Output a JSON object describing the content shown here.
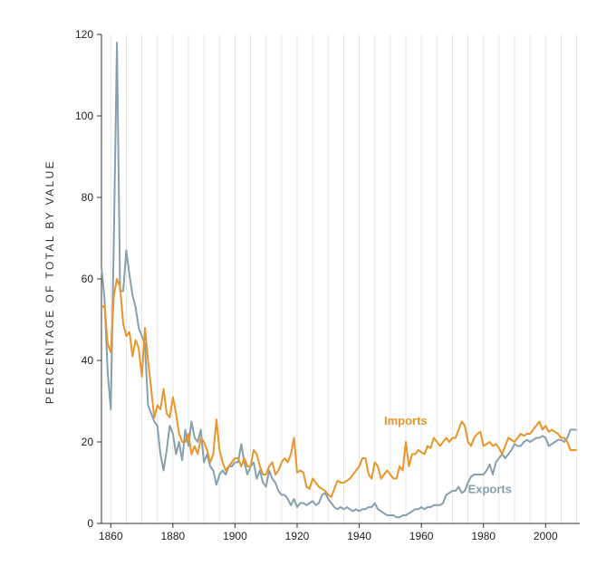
{
  "chart_data": {
    "type": "line",
    "title": "",
    "xlabel": "",
    "ylabel": "PERCENTAGE OF TOTAL BY VALUE",
    "xlim": [
      1857,
      2011
    ],
    "ylim": [
      0,
      120
    ],
    "x_ticks": [
      1860,
      1880,
      1900,
      1920,
      1940,
      1960,
      1980,
      2000
    ],
    "x_tick_labels": [
      "1860",
      "1880",
      "1900",
      "1920",
      "1940",
      "1960",
      "1980",
      "2000"
    ],
    "y_ticks": [
      0,
      20,
      40,
      60,
      80,
      100,
      120
    ],
    "y_tick_labels": [
      "0",
      "20",
      "40",
      "60",
      "80",
      "100",
      "120"
    ],
    "grid": "vertical-every-5-years",
    "legend": "inline-labels",
    "series": [
      {
        "name": "Imports",
        "color": "#e8952a",
        "label_at": [
          1948,
          24.2
        ],
        "points": [
          [
            1857,
            53
          ],
          [
            1858,
            53.5
          ],
          [
            1859,
            44
          ],
          [
            1860,
            42
          ],
          [
            1861,
            56
          ],
          [
            1862,
            60
          ],
          [
            1863,
            58
          ],
          [
            1864,
            49
          ],
          [
            1865,
            46
          ],
          [
            1866,
            47
          ],
          [
            1867,
            41
          ],
          [
            1868,
            45
          ],
          [
            1869,
            43
          ],
          [
            1870,
            36
          ],
          [
            1871,
            48
          ],
          [
            1872,
            40
          ],
          [
            1873,
            33
          ],
          [
            1874,
            26
          ],
          [
            1875,
            29
          ],
          [
            1876,
            28
          ],
          [
            1877,
            33
          ],
          [
            1878,
            27
          ],
          [
            1879,
            26
          ],
          [
            1880,
            31
          ],
          [
            1881,
            27
          ],
          [
            1882,
            22
          ],
          [
            1883,
            20
          ],
          [
            1884,
            20
          ],
          [
            1885,
            22
          ],
          [
            1886,
            17
          ],
          [
            1887,
            19
          ],
          [
            1888,
            17
          ],
          [
            1889,
            21
          ],
          [
            1890,
            20
          ],
          [
            1891,
            18
          ],
          [
            1892,
            15
          ],
          [
            1893,
            17
          ],
          [
            1894,
            25.5
          ],
          [
            1895,
            18
          ],
          [
            1896,
            15
          ],
          [
            1897,
            13
          ],
          [
            1898,
            14
          ],
          [
            1899,
            15
          ],
          [
            1900,
            16
          ],
          [
            1901,
            16
          ],
          [
            1902,
            14
          ],
          [
            1903,
            16
          ],
          [
            1904,
            14
          ],
          [
            1905,
            14
          ],
          [
            1906,
            18
          ],
          [
            1907,
            17
          ],
          [
            1908,
            14
          ],
          [
            1909,
            12
          ],
          [
            1910,
            12
          ],
          [
            1911,
            14
          ],
          [
            1912,
            15
          ],
          [
            1913,
            12
          ],
          [
            1914,
            13
          ],
          [
            1915,
            15
          ],
          [
            1916,
            16
          ],
          [
            1917,
            15
          ],
          [
            1918,
            17
          ],
          [
            1919,
            21
          ],
          [
            1920,
            12.5
          ],
          [
            1921,
            13
          ],
          [
            1922,
            12.5
          ],
          [
            1923,
            9
          ],
          [
            1924,
            8.5
          ],
          [
            1925,
            11
          ],
          [
            1926,
            10
          ],
          [
            1927,
            9
          ],
          [
            1928,
            8.5
          ],
          [
            1929,
            8
          ],
          [
            1930,
            7
          ],
          [
            1931,
            6.5
          ],
          [
            1932,
            8.5
          ],
          [
            1933,
            10.5
          ],
          [
            1934,
            10
          ],
          [
            1935,
            10
          ],
          [
            1936,
            10.5
          ],
          [
            1937,
            11
          ],
          [
            1938,
            12
          ],
          [
            1939,
            13
          ],
          [
            1940,
            14
          ],
          [
            1941,
            16
          ],
          [
            1942,
            16
          ],
          [
            1943,
            12
          ],
          [
            1944,
            11
          ],
          [
            1945,
            15
          ],
          [
            1946,
            14
          ],
          [
            1947,
            11
          ],
          [
            1948,
            12
          ],
          [
            1949,
            13
          ],
          [
            1950,
            12
          ],
          [
            1951,
            11
          ],
          [
            1952,
            11
          ],
          [
            1953,
            14
          ],
          [
            1954,
            13
          ],
          [
            1955,
            20
          ],
          [
            1956,
            14
          ],
          [
            1957,
            17
          ],
          [
            1958,
            17
          ],
          [
            1959,
            18
          ],
          [
            1960,
            17.5
          ],
          [
            1961,
            17
          ],
          [
            1962,
            19
          ],
          [
            1963,
            18.5
          ],
          [
            1964,
            21
          ],
          [
            1965,
            20
          ],
          [
            1966,
            19
          ],
          [
            1967,
            20
          ],
          [
            1968,
            21
          ],
          [
            1969,
            20
          ],
          [
            1970,
            21
          ],
          [
            1971,
            21
          ],
          [
            1972,
            23
          ],
          [
            1973,
            25
          ],
          [
            1974,
            24
          ],
          [
            1975,
            20
          ],
          [
            1976,
            19
          ],
          [
            1977,
            21
          ],
          [
            1978,
            22
          ],
          [
            1979,
            22.5
          ],
          [
            1980,
            19
          ],
          [
            1981,
            19.5
          ],
          [
            1982,
            20
          ],
          [
            1983,
            19
          ],
          [
            1984,
            19.5
          ],
          [
            1985,
            18.5
          ],
          [
            1986,
            17
          ],
          [
            1987,
            19
          ],
          [
            1988,
            21
          ],
          [
            1989,
            20.5
          ],
          [
            1990,
            20
          ],
          [
            1991,
            21
          ],
          [
            1992,
            22
          ],
          [
            1993,
            21.5
          ],
          [
            1994,
            22
          ],
          [
            1995,
            22
          ],
          [
            1996,
            23
          ],
          [
            1997,
            24
          ],
          [
            1998,
            25
          ],
          [
            1999,
            23
          ],
          [
            2000,
            24
          ],
          [
            2001,
            22.5
          ],
          [
            2002,
            23
          ],
          [
            2003,
            22.5
          ],
          [
            2004,
            22
          ],
          [
            2005,
            21
          ],
          [
            2006,
            21
          ],
          [
            2007,
            20
          ],
          [
            2008,
            18
          ],
          [
            2009,
            18
          ],
          [
            2010,
            18
          ]
        ]
      },
      {
        "name": "Exports",
        "color": "#87a0b0",
        "label_at": [
          1975,
          7.5
        ],
        "points": [
          [
            1857,
            63
          ],
          [
            1858,
            55
          ],
          [
            1859,
            37
          ],
          [
            1860,
            28
          ],
          [
            1861,
            70
          ],
          [
            1862,
            118
          ],
          [
            1863,
            57
          ],
          [
            1864,
            57
          ],
          [
            1865,
            67
          ],
          [
            1866,
            61
          ],
          [
            1867,
            56
          ],
          [
            1868,
            53
          ],
          [
            1869,
            48
          ],
          [
            1870,
            46
          ],
          [
            1871,
            44
          ],
          [
            1872,
            29
          ],
          [
            1873,
            27
          ],
          [
            1874,
            25
          ],
          [
            1875,
            24
          ],
          [
            1876,
            17
          ],
          [
            1877,
            13
          ],
          [
            1878,
            18
          ],
          [
            1879,
            24
          ],
          [
            1880,
            22
          ],
          [
            1881,
            17
          ],
          [
            1882,
            20
          ],
          [
            1883,
            15.5
          ],
          [
            1884,
            23
          ],
          [
            1885,
            19
          ],
          [
            1886,
            25
          ],
          [
            1887,
            21
          ],
          [
            1888,
            20
          ],
          [
            1889,
            23
          ],
          [
            1890,
            15
          ],
          [
            1891,
            17
          ],
          [
            1892,
            14
          ],
          [
            1893,
            13
          ],
          [
            1894,
            9.5
          ],
          [
            1895,
            12
          ],
          [
            1896,
            13
          ],
          [
            1897,
            12
          ],
          [
            1898,
            14
          ],
          [
            1899,
            14
          ],
          [
            1900,
            15
          ],
          [
            1901,
            15
          ],
          [
            1902,
            19.5
          ],
          [
            1903,
            15
          ],
          [
            1904,
            12
          ],
          [
            1905,
            14
          ],
          [
            1906,
            15
          ],
          [
            1907,
            11
          ],
          [
            1908,
            13
          ],
          [
            1909,
            10
          ],
          [
            1910,
            9
          ],
          [
            1911,
            13
          ],
          [
            1912,
            11
          ],
          [
            1913,
            10
          ],
          [
            1914,
            8
          ],
          [
            1915,
            7
          ],
          [
            1916,
            7
          ],
          [
            1917,
            6
          ],
          [
            1918,
            4.5
          ],
          [
            1919,
            6
          ],
          [
            1920,
            4
          ],
          [
            1921,
            5
          ],
          [
            1922,
            5
          ],
          [
            1923,
            4.5
          ],
          [
            1924,
            5
          ],
          [
            1925,
            5.5
          ],
          [
            1926,
            4.5
          ],
          [
            1927,
            5
          ],
          [
            1928,
            7
          ],
          [
            1929,
            7.5
          ],
          [
            1930,
            6
          ],
          [
            1931,
            5
          ],
          [
            1932,
            4
          ],
          [
            1933,
            3.5
          ],
          [
            1934,
            4
          ],
          [
            1935,
            3.5
          ],
          [
            1936,
            4
          ],
          [
            1937,
            3.5
          ],
          [
            1938,
            3
          ],
          [
            1939,
            3.5
          ],
          [
            1940,
            3
          ],
          [
            1941,
            3.5
          ],
          [
            1942,
            3.5
          ],
          [
            1943,
            4
          ],
          [
            1944,
            4
          ],
          [
            1945,
            5
          ],
          [
            1946,
            3.5
          ],
          [
            1947,
            3
          ],
          [
            1948,
            2.5
          ],
          [
            1949,
            2
          ],
          [
            1950,
            2
          ],
          [
            1951,
            2
          ],
          [
            1952,
            1.5
          ],
          [
            1953,
            1.5
          ],
          [
            1954,
            2
          ],
          [
            1955,
            2
          ],
          [
            1956,
            2.5
          ],
          [
            1957,
            3
          ],
          [
            1958,
            3.5
          ],
          [
            1959,
            3.5
          ],
          [
            1960,
            4
          ],
          [
            1961,
            3.5
          ],
          [
            1962,
            4
          ],
          [
            1963,
            4
          ],
          [
            1964,
            4.5
          ],
          [
            1965,
            4.5
          ],
          [
            1966,
            4.5
          ],
          [
            1967,
            5
          ],
          [
            1968,
            7
          ],
          [
            1969,
            7.5
          ],
          [
            1970,
            8
          ],
          [
            1971,
            8
          ],
          [
            1972,
            9
          ],
          [
            1973,
            7.5
          ],
          [
            1974,
            8
          ],
          [
            1975,
            10
          ],
          [
            1976,
            11.5
          ],
          [
            1977,
            12
          ],
          [
            1978,
            12
          ],
          [
            1979,
            12
          ],
          [
            1980,
            12
          ],
          [
            1981,
            13
          ],
          [
            1982,
            14.5
          ],
          [
            1983,
            12
          ],
          [
            1984,
            15
          ],
          [
            1985,
            16
          ],
          [
            1986,
            17
          ],
          [
            1987,
            16
          ],
          [
            1988,
            17
          ],
          [
            1989,
            18
          ],
          [
            1990,
            19.5
          ],
          [
            1991,
            19
          ],
          [
            1992,
            19
          ],
          [
            1993,
            20
          ],
          [
            1994,
            20.5
          ],
          [
            1995,
            20
          ],
          [
            1996,
            20.5
          ],
          [
            1997,
            21
          ],
          [
            1998,
            21
          ],
          [
            1999,
            21.5
          ],
          [
            2000,
            21
          ],
          [
            2001,
            19
          ],
          [
            2002,
            19.5
          ],
          [
            2003,
            20
          ],
          [
            2004,
            20.5
          ],
          [
            2005,
            20.5
          ],
          [
            2006,
            20
          ],
          [
            2007,
            21
          ],
          [
            2008,
            23
          ],
          [
            2009,
            23
          ],
          [
            2010,
            23
          ]
        ]
      }
    ]
  }
}
